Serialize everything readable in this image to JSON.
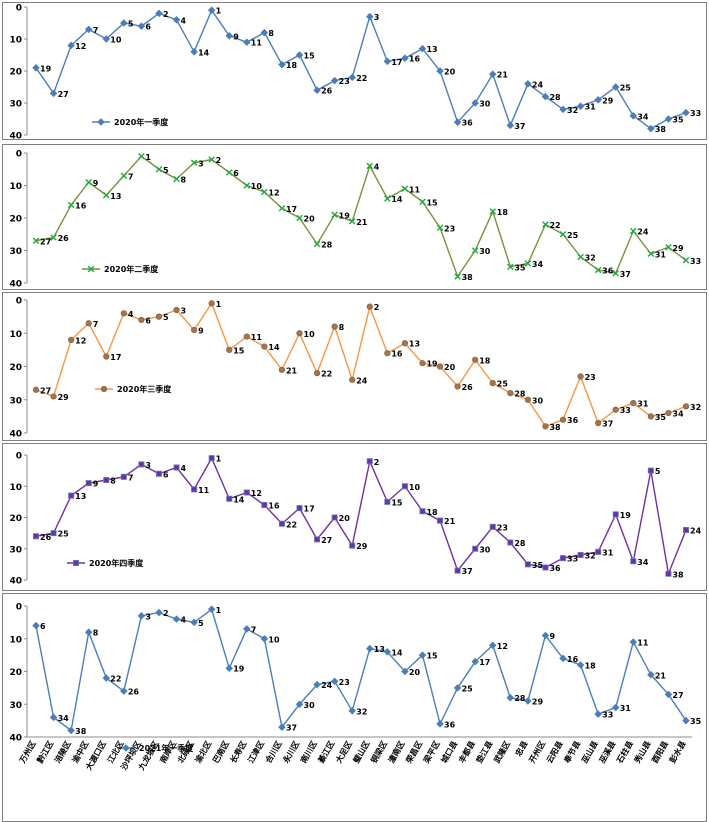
{
  "categories": [
    "万州区",
    "黔江区",
    "涪陵区",
    "渝中区",
    "大渡口区",
    "江北区",
    "沙坪坝区",
    "九龙坡区",
    "南岸区",
    "北碚区",
    "渝北区",
    "巴南区",
    "长寿区",
    "江津区",
    "合川区",
    "永川区",
    "南川区",
    "綦江区",
    "大足区",
    "璧山区",
    "铜梁区",
    "潼南区",
    "荣昌区",
    "梁平区",
    "城口县",
    "丰都县",
    "垫江县",
    "武隆区",
    "忠县",
    "开州区",
    "云阳县",
    "奉节县",
    "巫山县",
    "巫溪县",
    "石柱县",
    "秀山县",
    "酉阳县",
    "彭水县"
  ],
  "chart_data": [
    {
      "type": "line",
      "series": [
        {
          "name": "2020年一季度",
          "values": [
            19,
            27,
            12,
            7,
            10,
            5,
            6,
            2,
            4,
            14,
            1,
            9,
            11,
            8,
            18,
            15,
            26,
            23,
            22,
            3,
            17,
            16,
            13,
            20,
            36,
            30,
            21,
            37,
            24,
            28,
            32,
            31,
            29,
            25,
            34,
            38,
            35,
            33
          ]
        }
      ],
      "color": "#4a7ebb",
      "marker": "diamond",
      "ylim": [
        0,
        40
      ],
      "yticks": [
        0,
        10,
        20,
        30,
        40
      ],
      "y_inverted": true,
      "legend_position": "bottom-left"
    },
    {
      "type": "line",
      "series": [
        {
          "name": "2020年二季度",
          "values": [
            27,
            26,
            16,
            9,
            13,
            7,
            1,
            5,
            8,
            3,
            2,
            6,
            10,
            12,
            17,
            20,
            28,
            19,
            21,
            4,
            14,
            11,
            15,
            23,
            38,
            30,
            18,
            35,
            34,
            22,
            25,
            32,
            36,
            37,
            24,
            31,
            29,
            33
          ]
        }
      ],
      "color": "#77933c",
      "marker": "x",
      "ylim": [
        0,
        40
      ],
      "yticks": [
        0,
        10,
        20,
        30,
        40
      ],
      "y_inverted": true,
      "legend_position": "bottom-left"
    },
    {
      "type": "line",
      "series": [
        {
          "name": "2020年三季度",
          "values": [
            27,
            29,
            12,
            7,
            17,
            4,
            6,
            5,
            3,
            9,
            1,
            15,
            11,
            14,
            21,
            10,
            22,
            8,
            24,
            2,
            16,
            13,
            19,
            20,
            26,
            18,
            25,
            28,
            30,
            38,
            36,
            23,
            37,
            33,
            31,
            35,
            34,
            32
          ]
        }
      ],
      "color": "#f79646",
      "marker": "circle",
      "ylim": [
        0,
        40
      ],
      "yticks": [
        0,
        10,
        20,
        30,
        40
      ],
      "y_inverted": true,
      "legend_position": "bottom-left"
    },
    {
      "type": "line",
      "series": [
        {
          "name": "2020年四季度",
          "values": [
            26,
            25,
            13,
            9,
            8,
            7,
            3,
            6,
            4,
            11,
            1,
            14,
            12,
            16,
            22,
            17,
            27,
            20,
            29,
            2,
            15,
            10,
            18,
            21,
            37,
            30,
            23,
            28,
            35,
            36,
            33,
            32,
            31,
            19,
            34,
            5,
            38,
            24
          ]
        }
      ],
      "color": "#7030a0",
      "marker": "square",
      "ylim": [
        0,
        40
      ],
      "yticks": [
        0,
        10,
        20,
        30,
        40
      ],
      "y_inverted": true,
      "legend_position": "bottom-left"
    },
    {
      "type": "line",
      "series": [
        {
          "name": "2021年一季度",
          "values": [
            6,
            34,
            38,
            8,
            22,
            26,
            3,
            2,
            4,
            5,
            1,
            19,
            7,
            10,
            37,
            30,
            24,
            23,
            32,
            13,
            14,
            20,
            15,
            36,
            25,
            17,
            12,
            28,
            29,
            9,
            16,
            18,
            33,
            31,
            11,
            21,
            27,
            35
          ]
        }
      ],
      "color": "#4a7ebb",
      "marker": "diamond",
      "ylim": [
        0,
        40
      ],
      "yticks": [
        0,
        10,
        20,
        30,
        40
      ],
      "y_inverted": true,
      "legend_position": "bottom-left"
    }
  ],
  "colors": {
    "panel_border": "#7f7f7f",
    "label_text": "#000000"
  }
}
